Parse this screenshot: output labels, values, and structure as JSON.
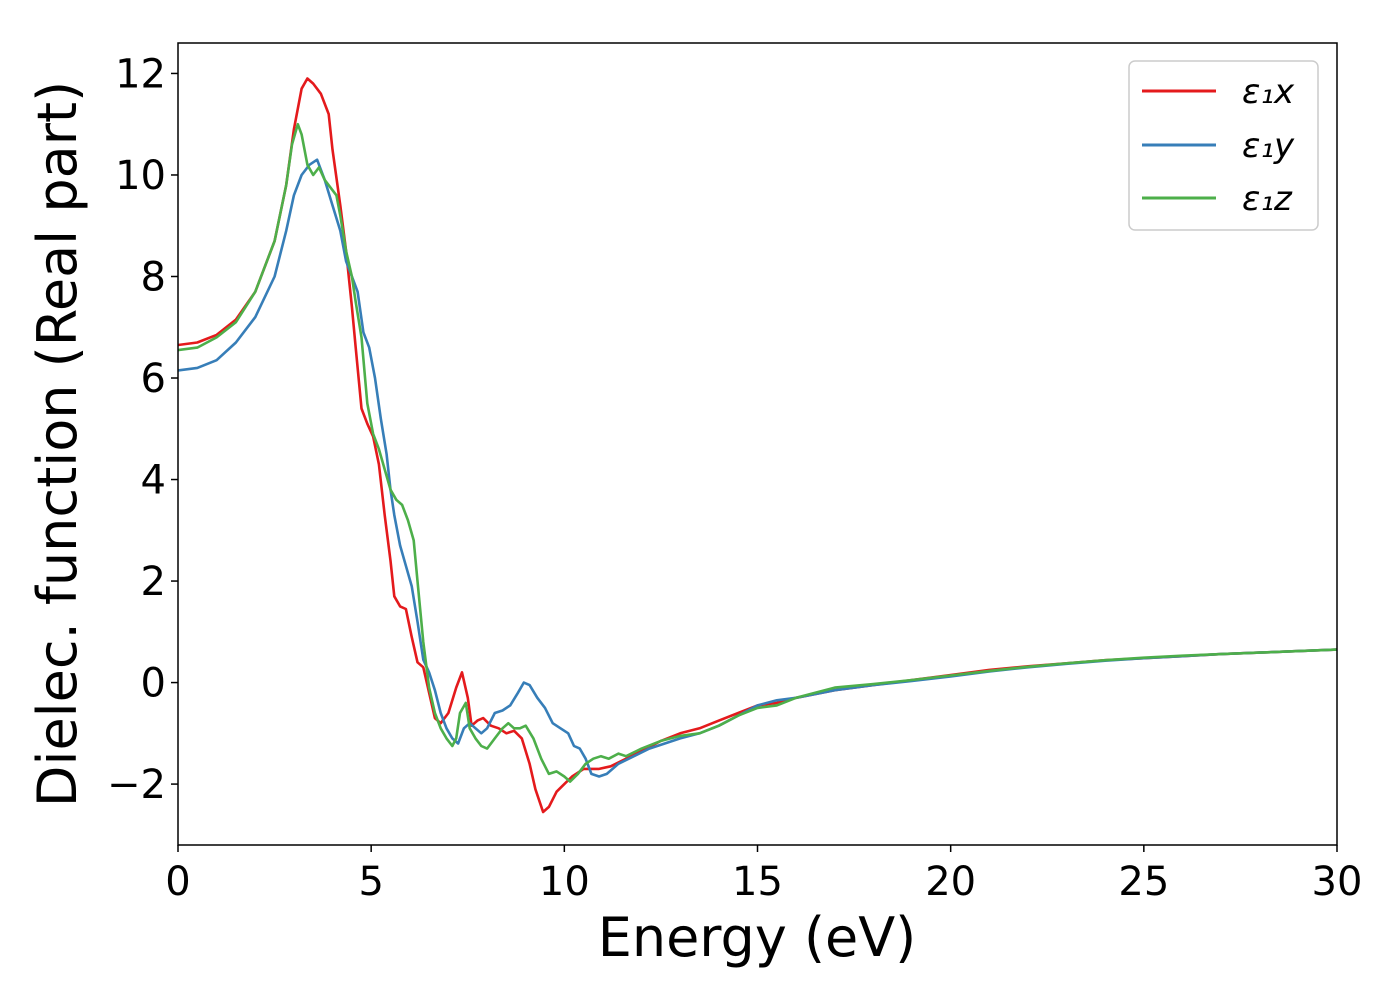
{
  "chart_data": {
    "type": "line",
    "xlabel": "Energy (eV)",
    "ylabel": "Dielec. function (Real part)",
    "xlim": [
      0,
      30
    ],
    "ylim": [
      -3.2,
      12.6
    ],
    "xticks": [
      0,
      5,
      10,
      15,
      20,
      25,
      30
    ],
    "yticks": [
      -2,
      0,
      2,
      4,
      6,
      8,
      10,
      12
    ],
    "xtick_labels": [
      "0",
      "5",
      "10",
      "15",
      "20",
      "25",
      "30"
    ],
    "ytick_labels": [
      "−2",
      "0",
      "2",
      "4",
      "6",
      "8",
      "10",
      "12"
    ],
    "grid": false,
    "legend_position": "top-right",
    "series": [
      {
        "name": "ε₁x",
        "color": "#e41a1c",
        "points": [
          [
            0,
            6.65
          ],
          [
            0.5,
            6.7
          ],
          [
            1,
            6.85
          ],
          [
            1.5,
            7.15
          ],
          [
            2,
            7.7
          ],
          [
            2.5,
            8.7
          ],
          [
            2.8,
            9.8
          ],
          [
            3.0,
            10.9
          ],
          [
            3.2,
            11.7
          ],
          [
            3.35,
            11.9
          ],
          [
            3.5,
            11.8
          ],
          [
            3.7,
            11.6
          ],
          [
            3.9,
            11.2
          ],
          [
            4.0,
            10.5
          ],
          [
            4.2,
            9.4
          ],
          [
            4.35,
            8.5
          ],
          [
            4.5,
            7.4
          ],
          [
            4.6,
            6.6
          ],
          [
            4.75,
            5.4
          ],
          [
            4.9,
            5.1
          ],
          [
            5.05,
            4.85
          ],
          [
            5.2,
            4.3
          ],
          [
            5.35,
            3.3
          ],
          [
            5.5,
            2.4
          ],
          [
            5.6,
            1.7
          ],
          [
            5.75,
            1.5
          ],
          [
            5.9,
            1.45
          ],
          [
            6.05,
            0.9
          ],
          [
            6.2,
            0.4
          ],
          [
            6.35,
            0.3
          ],
          [
            6.5,
            -0.2
          ],
          [
            6.65,
            -0.7
          ],
          [
            6.8,
            -0.8
          ],
          [
            7.0,
            -0.6
          ],
          [
            7.2,
            -0.1
          ],
          [
            7.35,
            0.2
          ],
          [
            7.5,
            -0.3
          ],
          [
            7.6,
            -0.85
          ],
          [
            7.75,
            -0.75
          ],
          [
            7.9,
            -0.7
          ],
          [
            8.1,
            -0.85
          ],
          [
            8.3,
            -0.9
          ],
          [
            8.5,
            -1.0
          ],
          [
            8.7,
            -0.95
          ],
          [
            8.9,
            -1.1
          ],
          [
            9.1,
            -1.6
          ],
          [
            9.25,
            -2.1
          ],
          [
            9.45,
            -2.55
          ],
          [
            9.6,
            -2.45
          ],
          [
            9.8,
            -2.15
          ],
          [
            10.0,
            -2.0
          ],
          [
            10.2,
            -1.85
          ],
          [
            10.5,
            -1.7
          ],
          [
            10.9,
            -1.7
          ],
          [
            11.2,
            -1.65
          ],
          [
            11.6,
            -1.5
          ],
          [
            12.0,
            -1.35
          ],
          [
            12.5,
            -1.15
          ],
          [
            13.0,
            -1.0
          ],
          [
            13.5,
            -0.9
          ],
          [
            14.0,
            -0.75
          ],
          [
            14.5,
            -0.6
          ],
          [
            15.0,
            -0.45
          ],
          [
            15.5,
            -0.4
          ],
          [
            16.0,
            -0.3
          ],
          [
            17.0,
            -0.15
          ],
          [
            18.0,
            -0.05
          ],
          [
            19.0,
            0.05
          ],
          [
            20.0,
            0.15
          ],
          [
            21.0,
            0.25
          ],
          [
            22.0,
            0.32
          ],
          [
            23.0,
            0.38
          ],
          [
            24.0,
            0.44
          ],
          [
            25.0,
            0.48
          ],
          [
            26.0,
            0.52
          ],
          [
            27.0,
            0.56
          ],
          [
            28.0,
            0.59
          ],
          [
            29.0,
            0.62
          ],
          [
            30.0,
            0.65
          ]
        ]
      },
      {
        "name": "ε₁y",
        "color": "#377eb8",
        "points": [
          [
            0,
            6.15
          ],
          [
            0.5,
            6.2
          ],
          [
            1,
            6.35
          ],
          [
            1.5,
            6.7
          ],
          [
            2,
            7.2
          ],
          [
            2.5,
            8.0
          ],
          [
            2.8,
            8.9
          ],
          [
            3.0,
            9.6
          ],
          [
            3.2,
            10.0
          ],
          [
            3.4,
            10.2
          ],
          [
            3.6,
            10.3
          ],
          [
            3.8,
            9.9
          ],
          [
            4.0,
            9.4
          ],
          [
            4.2,
            8.9
          ],
          [
            4.35,
            8.3
          ],
          [
            4.5,
            8.0
          ],
          [
            4.65,
            7.7
          ],
          [
            4.8,
            6.9
          ],
          [
            4.95,
            6.6
          ],
          [
            5.1,
            6.0
          ],
          [
            5.25,
            5.2
          ],
          [
            5.4,
            4.5
          ],
          [
            5.5,
            3.8
          ],
          [
            5.6,
            3.3
          ],
          [
            5.75,
            2.7
          ],
          [
            5.9,
            2.3
          ],
          [
            6.05,
            1.9
          ],
          [
            6.2,
            1.2
          ],
          [
            6.35,
            0.45
          ],
          [
            6.5,
            0.2
          ],
          [
            6.65,
            -0.15
          ],
          [
            6.8,
            -0.6
          ],
          [
            6.95,
            -0.9
          ],
          [
            7.1,
            -1.1
          ],
          [
            7.25,
            -1.2
          ],
          [
            7.4,
            -0.9
          ],
          [
            7.55,
            -0.8
          ],
          [
            7.7,
            -0.9
          ],
          [
            7.85,
            -1.0
          ],
          [
            8.0,
            -0.9
          ],
          [
            8.2,
            -0.6
          ],
          [
            8.4,
            -0.55
          ],
          [
            8.6,
            -0.45
          ],
          [
            8.8,
            -0.2
          ],
          [
            8.95,
            0.0
          ],
          [
            9.1,
            -0.05
          ],
          [
            9.3,
            -0.3
          ],
          [
            9.5,
            -0.5
          ],
          [
            9.7,
            -0.8
          ],
          [
            9.9,
            -0.9
          ],
          [
            10.1,
            -1.0
          ],
          [
            10.25,
            -1.25
          ],
          [
            10.4,
            -1.3
          ],
          [
            10.55,
            -1.5
          ],
          [
            10.7,
            -1.8
          ],
          [
            10.9,
            -1.85
          ],
          [
            11.1,
            -1.8
          ],
          [
            11.4,
            -1.6
          ],
          [
            11.8,
            -1.45
          ],
          [
            12.2,
            -1.3
          ],
          [
            12.6,
            -1.2
          ],
          [
            13.0,
            -1.1
          ],
          [
            13.5,
            -1.0
          ],
          [
            14.0,
            -0.85
          ],
          [
            14.5,
            -0.65
          ],
          [
            15.0,
            -0.45
          ],
          [
            15.5,
            -0.35
          ],
          [
            16.0,
            -0.3
          ],
          [
            17.0,
            -0.15
          ],
          [
            18.0,
            -0.05
          ],
          [
            19.0,
            0.03
          ],
          [
            20.0,
            0.12
          ],
          [
            21.0,
            0.22
          ],
          [
            22.0,
            0.3
          ],
          [
            23.0,
            0.37
          ],
          [
            24.0,
            0.43
          ],
          [
            25.0,
            0.48
          ],
          [
            26.0,
            0.52
          ],
          [
            27.0,
            0.56
          ],
          [
            28.0,
            0.59
          ],
          [
            29.0,
            0.62
          ],
          [
            30.0,
            0.65
          ]
        ]
      },
      {
        "name": "ε₁z",
        "color": "#4daf4a",
        "points": [
          [
            0,
            6.55
          ],
          [
            0.5,
            6.6
          ],
          [
            1,
            6.8
          ],
          [
            1.5,
            7.1
          ],
          [
            2,
            7.7
          ],
          [
            2.5,
            8.7
          ],
          [
            2.8,
            9.8
          ],
          [
            2.95,
            10.6
          ],
          [
            3.1,
            11.0
          ],
          [
            3.2,
            10.8
          ],
          [
            3.35,
            10.2
          ],
          [
            3.5,
            10.0
          ],
          [
            3.65,
            10.15
          ],
          [
            3.8,
            9.9
          ],
          [
            3.95,
            9.75
          ],
          [
            4.1,
            9.6
          ],
          [
            4.2,
            9.2
          ],
          [
            4.35,
            8.5
          ],
          [
            4.5,
            8.0
          ],
          [
            4.6,
            7.5
          ],
          [
            4.75,
            6.8
          ],
          [
            4.9,
            5.5
          ],
          [
            5.05,
            4.9
          ],
          [
            5.2,
            4.6
          ],
          [
            5.35,
            4.2
          ],
          [
            5.5,
            3.8
          ],
          [
            5.65,
            3.6
          ],
          [
            5.8,
            3.5
          ],
          [
            5.95,
            3.2
          ],
          [
            6.1,
            2.8
          ],
          [
            6.2,
            2.0
          ],
          [
            6.35,
            0.8
          ],
          [
            6.5,
            -0.1
          ],
          [
            6.65,
            -0.6
          ],
          [
            6.8,
            -0.9
          ],
          [
            6.95,
            -1.1
          ],
          [
            7.1,
            -1.25
          ],
          [
            7.2,
            -1.1
          ],
          [
            7.3,
            -0.6
          ],
          [
            7.45,
            -0.4
          ],
          [
            7.55,
            -0.9
          ],
          [
            7.7,
            -1.1
          ],
          [
            7.85,
            -1.25
          ],
          [
            8.0,
            -1.3
          ],
          [
            8.2,
            -1.1
          ],
          [
            8.4,
            -0.9
          ],
          [
            8.55,
            -0.8
          ],
          [
            8.7,
            -0.9
          ],
          [
            8.85,
            -0.9
          ],
          [
            9.0,
            -0.85
          ],
          [
            9.2,
            -1.1
          ],
          [
            9.4,
            -1.5
          ],
          [
            9.6,
            -1.8
          ],
          [
            9.8,
            -1.75
          ],
          [
            10.0,
            -1.85
          ],
          [
            10.15,
            -1.95
          ],
          [
            10.35,
            -1.8
          ],
          [
            10.55,
            -1.6
          ],
          [
            10.75,
            -1.5
          ],
          [
            10.95,
            -1.45
          ],
          [
            11.15,
            -1.5
          ],
          [
            11.4,
            -1.4
          ],
          [
            11.6,
            -1.45
          ],
          [
            12.0,
            -1.3
          ],
          [
            12.5,
            -1.15
          ],
          [
            13.0,
            -1.05
          ],
          [
            13.5,
            -1.0
          ],
          [
            14.0,
            -0.85
          ],
          [
            14.5,
            -0.65
          ],
          [
            15.0,
            -0.5
          ],
          [
            15.5,
            -0.45
          ],
          [
            16.0,
            -0.3
          ],
          [
            17.0,
            -0.1
          ],
          [
            18.0,
            -0.03
          ],
          [
            19.0,
            0.05
          ],
          [
            20.0,
            0.14
          ],
          [
            21.0,
            0.23
          ],
          [
            22.0,
            0.31
          ],
          [
            23.0,
            0.38
          ],
          [
            24.0,
            0.44
          ],
          [
            25.0,
            0.49
          ],
          [
            26.0,
            0.53
          ],
          [
            27.0,
            0.56
          ],
          [
            28.0,
            0.59
          ],
          [
            29.0,
            0.62
          ],
          [
            30.0,
            0.65
          ]
        ]
      }
    ]
  }
}
